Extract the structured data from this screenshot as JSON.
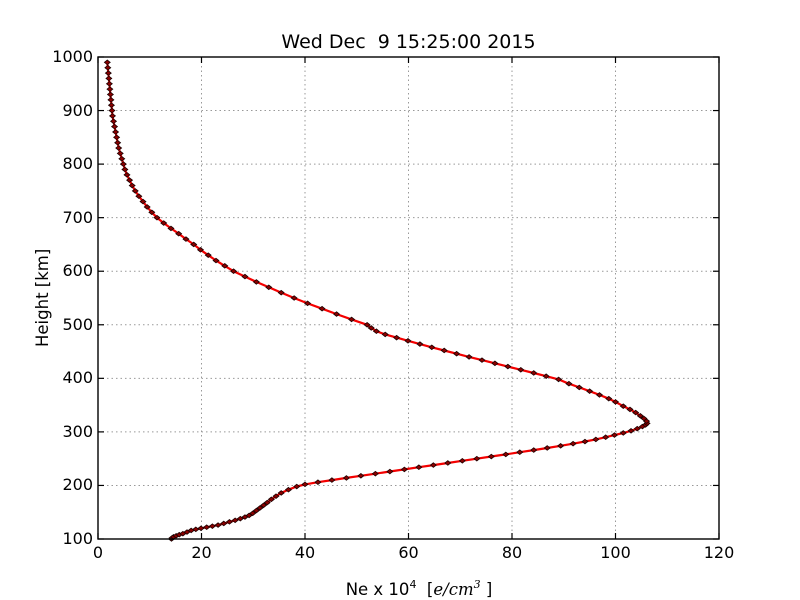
{
  "figure": {
    "background": "#ffffff",
    "frame_color": "#000000",
    "grid_color": "#999999"
  },
  "chart_data": {
    "type": "line",
    "title": "Wed Dec  9 15:25:00 2015",
    "xlabel": "Ne x 10^4  [e/cm^3 ]",
    "xlabel_parts": {
      "prefix": "Ne x 10",
      "exponent": "4",
      "bracket_open": "  [",
      "unit": "e/cm",
      "unit_exponent": "3",
      "bracket_close": " ]"
    },
    "ylabel": "Height [km]",
    "xlim": [
      0,
      120
    ],
    "ylim": [
      100,
      1000
    ],
    "xticks": [
      0,
      20,
      40,
      60,
      80,
      100,
      120
    ],
    "yticks": [
      100,
      200,
      300,
      400,
      500,
      600,
      700,
      800,
      900,
      1000
    ],
    "grid": true,
    "grid_style": "dotted",
    "legend": null,
    "series": [
      {
        "name": "electron-density-profile",
        "line_color": "#f40000",
        "marker_color": "#8b0000",
        "marker_edge_color": "#1a0000",
        "marker": "diamond",
        "points_format": "[Ne_x1e4_per_cm3, height_km]",
        "points": [
          [
            14.2,
            100
          ],
          [
            14.3,
            102
          ],
          [
            14.6,
            104
          ],
          [
            15.1,
            106
          ],
          [
            15.7,
            108
          ],
          [
            16.4,
            110
          ],
          [
            17.2,
            113
          ],
          [
            18.0,
            116
          ],
          [
            18.9,
            118
          ],
          [
            19.9,
            120
          ],
          [
            21.0,
            122
          ],
          [
            22.1,
            124
          ],
          [
            23.2,
            126
          ],
          [
            24.3,
            129
          ],
          [
            25.4,
            132
          ],
          [
            26.5,
            135
          ],
          [
            27.5,
            138
          ],
          [
            28.4,
            141
          ],
          [
            29.2,
            144
          ],
          [
            29.9,
            148
          ],
          [
            30.6,
            153
          ],
          [
            31.3,
            158
          ],
          [
            32.0,
            163
          ],
          [
            32.7,
            168
          ],
          [
            33.5,
            174
          ],
          [
            34.4,
            180
          ],
          [
            35.4,
            186
          ],
          [
            36.8,
            192
          ],
          [
            38.4,
            198
          ],
          [
            40.0,
            202
          ],
          [
            42.5,
            206
          ],
          [
            45.2,
            210
          ],
          [
            48.0,
            214
          ],
          [
            50.8,
            218
          ],
          [
            53.6,
            222
          ],
          [
            56.4,
            226
          ],
          [
            59.2,
            230
          ],
          [
            62.0,
            234
          ],
          [
            64.8,
            238
          ],
          [
            67.6,
            242
          ],
          [
            70.4,
            246
          ],
          [
            73.2,
            250
          ],
          [
            76.0,
            254
          ],
          [
            78.8,
            258
          ],
          [
            81.5,
            262
          ],
          [
            84.2,
            266
          ],
          [
            86.8,
            270
          ],
          [
            89.4,
            274
          ],
          [
            91.8,
            278
          ],
          [
            94.1,
            282
          ],
          [
            96.2,
            286
          ],
          [
            98.1,
            290
          ],
          [
            99.8,
            294
          ],
          [
            101.5,
            298
          ],
          [
            103.0,
            302
          ],
          [
            104.2,
            306
          ],
          [
            105.2,
            310
          ],
          [
            105.8,
            313
          ],
          [
            106.1,
            316
          ],
          [
            106.0,
            320
          ],
          [
            105.5,
            325
          ],
          [
            104.8,
            330
          ],
          [
            103.9,
            336
          ],
          [
            102.8,
            342
          ],
          [
            101.5,
            348
          ],
          [
            100.0,
            356
          ],
          [
            98.7,
            362
          ],
          [
            96.9,
            369
          ],
          [
            95.0,
            376
          ],
          [
            93.0,
            383
          ],
          [
            91.0,
            390
          ],
          [
            89.0,
            398
          ],
          [
            86.6,
            404
          ],
          [
            84.2,
            410
          ],
          [
            81.7,
            416
          ],
          [
            79.2,
            422
          ],
          [
            76.7,
            428
          ],
          [
            74.2,
            434
          ],
          [
            71.7,
            440
          ],
          [
            69.3,
            446
          ],
          [
            66.9,
            452
          ],
          [
            64.5,
            458
          ],
          [
            62.2,
            464
          ],
          [
            59.9,
            470
          ],
          [
            57.7,
            476
          ],
          [
            55.5,
            482
          ],
          [
            53.8,
            488
          ],
          [
            52.8,
            494
          ],
          [
            52.0,
            500
          ],
          [
            49.0,
            510
          ],
          [
            46.1,
            520
          ],
          [
            43.3,
            530
          ],
          [
            40.5,
            540
          ],
          [
            37.9,
            550
          ],
          [
            35.4,
            560
          ],
          [
            33.0,
            570
          ],
          [
            30.6,
            580
          ],
          [
            28.4,
            590
          ],
          [
            26.2,
            600
          ],
          [
            24.5,
            610
          ],
          [
            22.8,
            620
          ],
          [
            21.3,
            630
          ],
          [
            19.8,
            640
          ],
          [
            18.5,
            650
          ],
          [
            17.0,
            660
          ],
          [
            15.6,
            670
          ],
          [
            14.1,
            680
          ],
          [
            12.7,
            690
          ],
          [
            11.4,
            700
          ],
          [
            10.4,
            710
          ],
          [
            9.5,
            720
          ],
          [
            8.7,
            730
          ],
          [
            7.9,
            740
          ],
          [
            7.2,
            750
          ],
          [
            6.6,
            760
          ],
          [
            6.1,
            770
          ],
          [
            5.6,
            780
          ],
          [
            5.2,
            790
          ],
          [
            4.9,
            800
          ],
          [
            4.6,
            810
          ],
          [
            4.3,
            820
          ],
          [
            4.0,
            830
          ],
          [
            3.8,
            840
          ],
          [
            3.6,
            850
          ],
          [
            3.4,
            860
          ],
          [
            3.2,
            870
          ],
          [
            3.0,
            880
          ],
          [
            2.8,
            890
          ],
          [
            2.7,
            900
          ],
          [
            2.6,
            910
          ],
          [
            2.5,
            920
          ],
          [
            2.4,
            930
          ],
          [
            2.3,
            940
          ],
          [
            2.2,
            950
          ],
          [
            2.1,
            960
          ],
          [
            2.0,
            970
          ],
          [
            1.9,
            980
          ],
          [
            1.8,
            990
          ]
        ]
      }
    ]
  }
}
